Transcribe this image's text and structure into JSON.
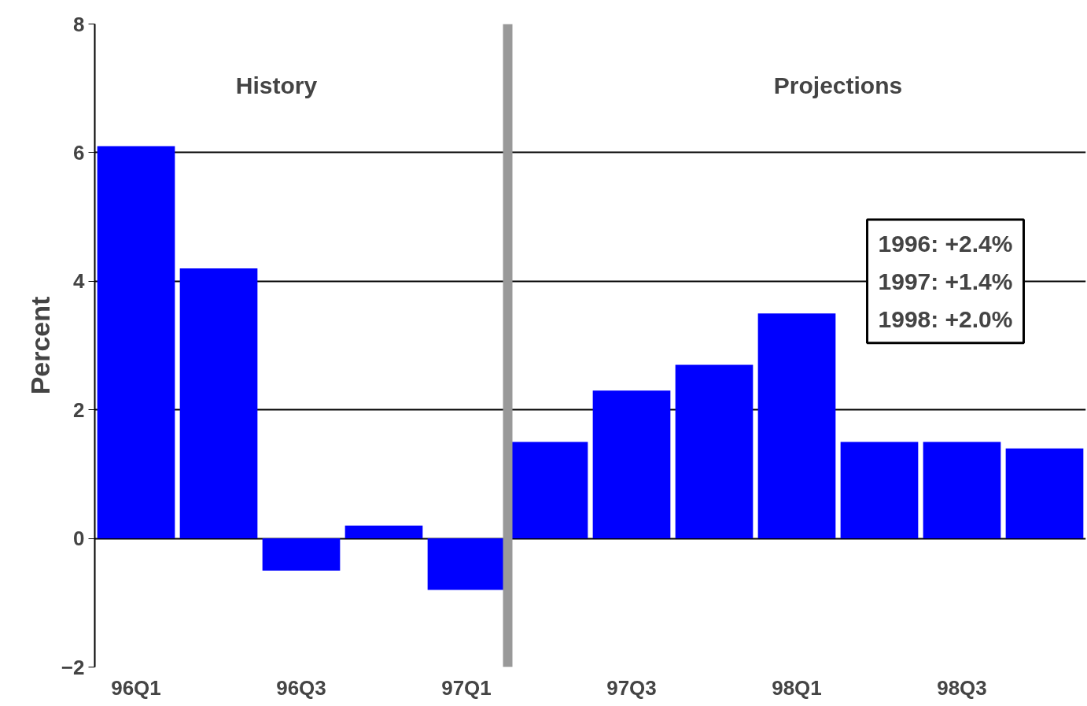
{
  "chart_data": {
    "type": "bar",
    "ylabel": "Percent",
    "categories": [
      "96Q1",
      null,
      "96Q3",
      null,
      "97Q1",
      null,
      "97Q3",
      null,
      "98Q1",
      null,
      "98Q3",
      null
    ],
    "values": [
      6.1,
      4.2,
      -0.5,
      0.2,
      -0.8,
      1.5,
      2.3,
      2.7,
      3.5,
      1.5,
      1.5,
      1.4
    ],
    "color": "#0000ff",
    "ylim": [
      -2,
      8
    ],
    "yticks": [
      -2,
      0,
      2,
      4,
      6,
      8
    ],
    "grid": "y",
    "annotations": [
      "History",
      "Projections",
      "1996: +2.4%\n1997: +1.4%\n1998: +2.0%"
    ]
  }
}
